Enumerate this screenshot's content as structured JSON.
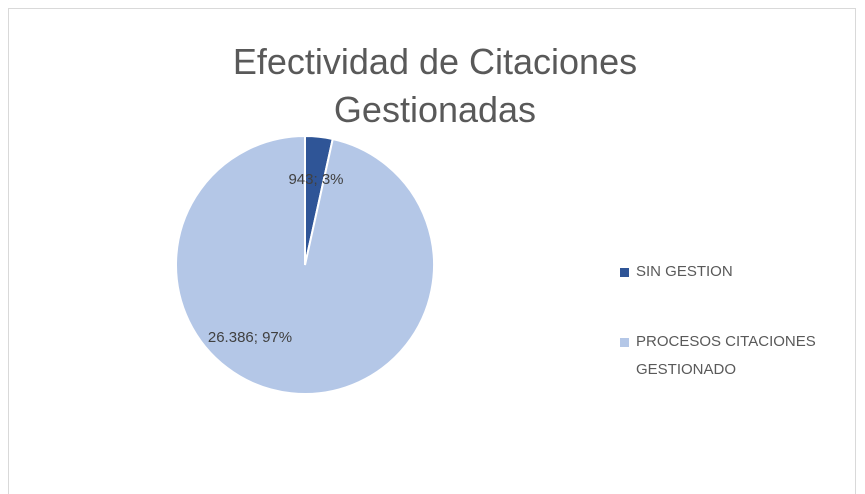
{
  "chart_data": {
    "type": "pie",
    "title": "Efectividad de Citaciones Gestionadas",
    "categories": [
      "SIN GESTION",
      "PROCESOS CITACIONES GESTIONADO"
    ],
    "values": [
      943,
      26386
    ],
    "value_labels": [
      "943; 3%",
      "26.386; 97%"
    ],
    "colors": [
      "#2f5597",
      "#b4c7e7"
    ],
    "legend": "right"
  }
}
